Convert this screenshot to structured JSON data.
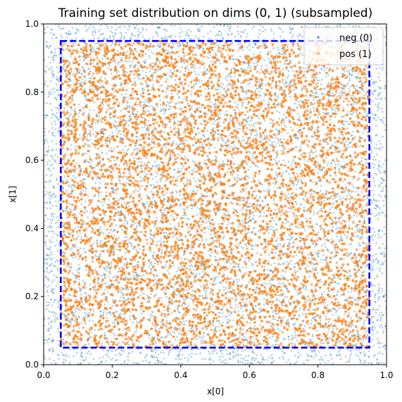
{
  "chart_data": {
    "type": "scatter",
    "title": "Training set distribution on dims (0, 1) (subsampled)",
    "xlabel": "x[0]",
    "ylabel": "x[1]",
    "xlim": [
      0.0,
      1.0
    ],
    "ylim": [
      0.0,
      1.0
    ],
    "xticks": [
      "0.0",
      "0.2",
      "0.4",
      "0.6",
      "0.8",
      "1.0"
    ],
    "yticks": [
      "0.0",
      "0.2",
      "0.4",
      "0.6",
      "0.8",
      "1.0"
    ],
    "grid": false,
    "legend_position": "top-right",
    "series": [
      {
        "name": "neg (0)",
        "color": "#1f77b4",
        "distribution": "uniform on [0,1]x[0,1] outside the inner box (visible as border band and through gaps)",
        "x_range": [
          0.0,
          1.0
        ],
        "y_range": [
          0.0,
          1.0
        ]
      },
      {
        "name": "pos (1)",
        "color": "#ff7f0e",
        "distribution": "uniform within inner box",
        "x_range": [
          0.05,
          0.95
        ],
        "y_range": [
          0.05,
          0.95
        ]
      }
    ],
    "annotations": [
      {
        "type": "dashed-rectangle",
        "color": "#0000ff",
        "x_range": [
          0.05,
          0.95
        ],
        "y_range": [
          0.05,
          0.95
        ]
      }
    ]
  }
}
